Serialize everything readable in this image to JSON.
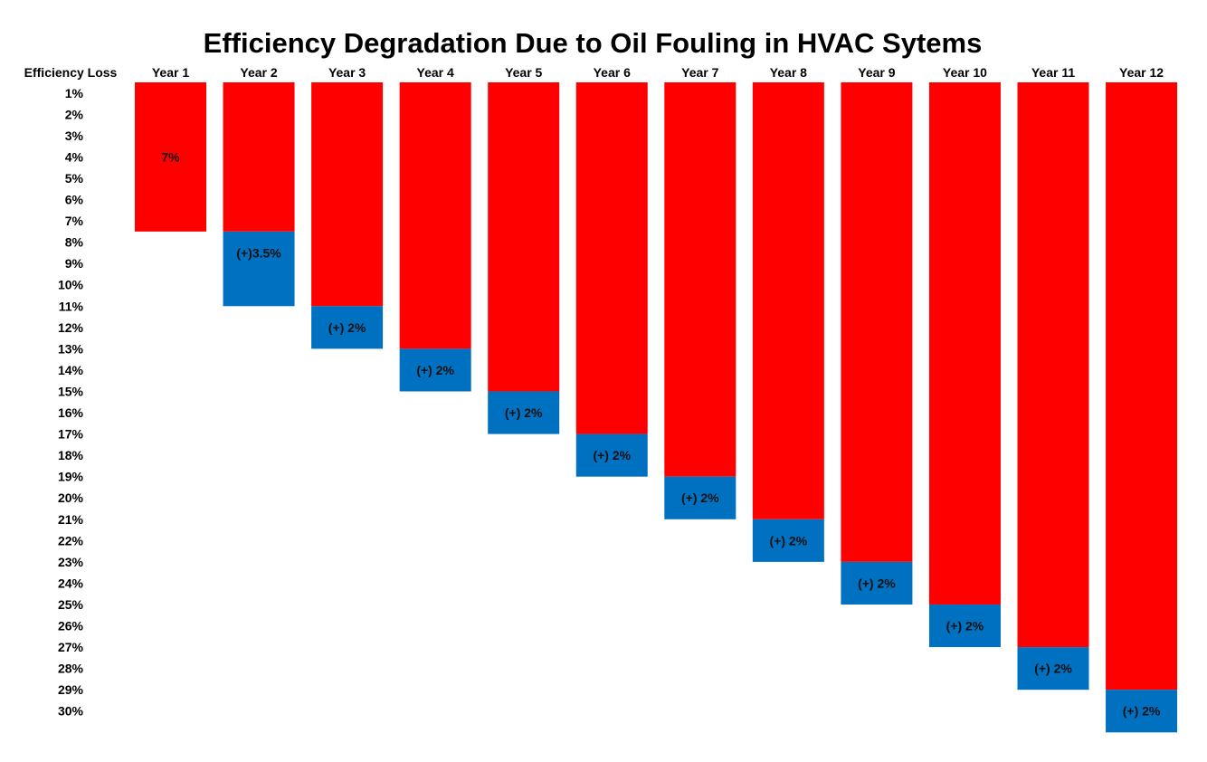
{
  "chart_data": {
    "type": "bar",
    "title": "Efficiency Degradation Due to Oil Fouling in HVAC Sytems",
    "ylabel": "Efficiency Loss",
    "categories": [
      "Year 1",
      "Year 2",
      "Year 3",
      "Year 4",
      "Year 5",
      "Year 6",
      "Year 7",
      "Year 8",
      "Year 9",
      "Year 10",
      "Year 11",
      "Year 12"
    ],
    "y_ticks": [
      "1%",
      "2%",
      "3%",
      "4%",
      "5%",
      "6%",
      "7%",
      "8%",
      "9%",
      "10%",
      "11%",
      "12%",
      "13%",
      "14%",
      "15%",
      "16%",
      "17%",
      "18%",
      "19%",
      "20%",
      "21%",
      "22%",
      "23%",
      "24%",
      "25%",
      "26%",
      "27%",
      "28%",
      "29%",
      "30%"
    ],
    "ylim": [
      0,
      30
    ],
    "y_inverted": true,
    "stacked": true,
    "series": [
      {
        "color": "#ff0000",
        "values": [
          7,
          7,
          10.5,
          12.5,
          14.5,
          16.5,
          18.5,
          20.5,
          22.5,
          24.5,
          26.5,
          28.5
        ],
        "labels": [
          "7%",
          "",
          "",
          "",
          "",
          "",
          "",
          "",
          "",
          "",
          "",
          ""
        ]
      },
      {
        "color": "#0070c0",
        "values": [
          0,
          3.5,
          2,
          2,
          2,
          2,
          2,
          2,
          2,
          2,
          2,
          2
        ],
        "labels": [
          "",
          "(+)3.5%",
          "(+) 2%",
          "(+) 2%",
          "(+) 2%",
          "(+) 2%",
          "(+) 2%",
          "(+) 2%",
          "(+) 2%",
          "(+) 2%",
          "(+) 2%",
          "(+) 2%"
        ]
      }
    ],
    "grid": false,
    "legend": "none"
  }
}
